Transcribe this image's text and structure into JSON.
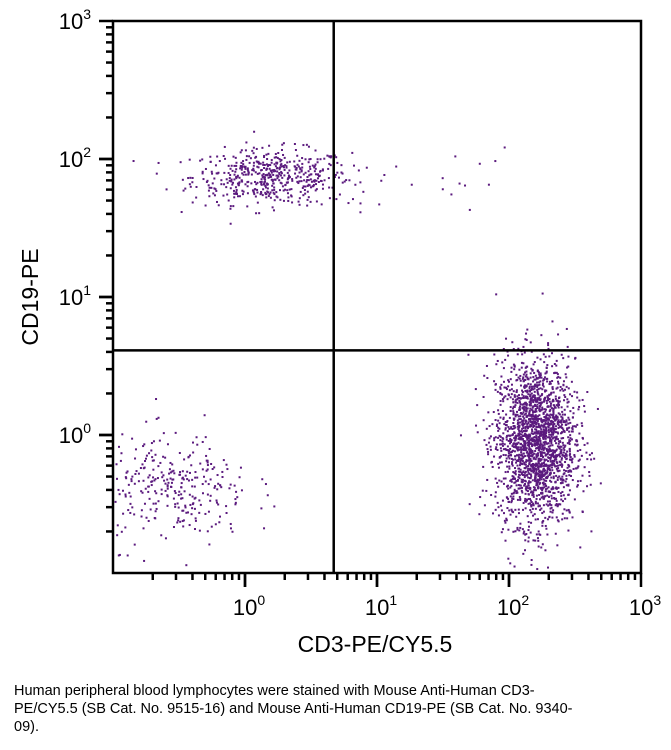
{
  "chart_data": {
    "type": "scatter",
    "title": "",
    "xlabel": "CD3-PE/CY5.5",
    "ylabel": "CD19-PE",
    "xscale": "log",
    "yscale": "log",
    "xlim": [
      0.1,
      1000
    ],
    "ylim": [
      0.1,
      1000
    ],
    "x_ticks": [
      {
        "base": "10",
        "exp": "0",
        "value": 1
      },
      {
        "base": "10",
        "exp": "1",
        "value": 10
      },
      {
        "base": "10",
        "exp": "2",
        "value": 100
      },
      {
        "base": "10",
        "exp": "3",
        "value": 1000
      }
    ],
    "y_ticks": [
      {
        "base": "10",
        "exp": "0",
        "value": 1
      },
      {
        "base": "10",
        "exp": "1",
        "value": 10
      },
      {
        "base": "10",
        "exp": "2",
        "value": 100
      },
      {
        "base": "10",
        "exp": "3",
        "value": 1000
      }
    ],
    "quadrant_gates": {
      "x": 4.7,
      "y": 4.1
    },
    "point_color": "#5b1a7e",
    "populations": [
      {
        "center_log10": [
          0.2,
          1.87
        ],
        "sd_log10": [
          0.3,
          0.1
        ],
        "count": 520
      },
      {
        "center_log10": [
          2.2,
          -0.05
        ],
        "sd_log10": [
          0.15,
          0.3
        ],
        "count": 2100
      },
      {
        "center_log10": [
          -0.55,
          -0.4
        ],
        "sd_log10": [
          0.3,
          0.2
        ],
        "count": 320
      },
      {
        "center_log10": [
          1.3,
          1.85
        ],
        "sd_log10": [
          0.5,
          0.12
        ],
        "count": 22
      }
    ],
    "caption": "Human peripheral blood lymphocytes were stained with Mouse Anti-Human CD3-PE/CY5.5 (SB Cat. No. 9515-16) and Mouse Anti-Human CD19-PE (SB Cat. No. 9340-09)."
  }
}
